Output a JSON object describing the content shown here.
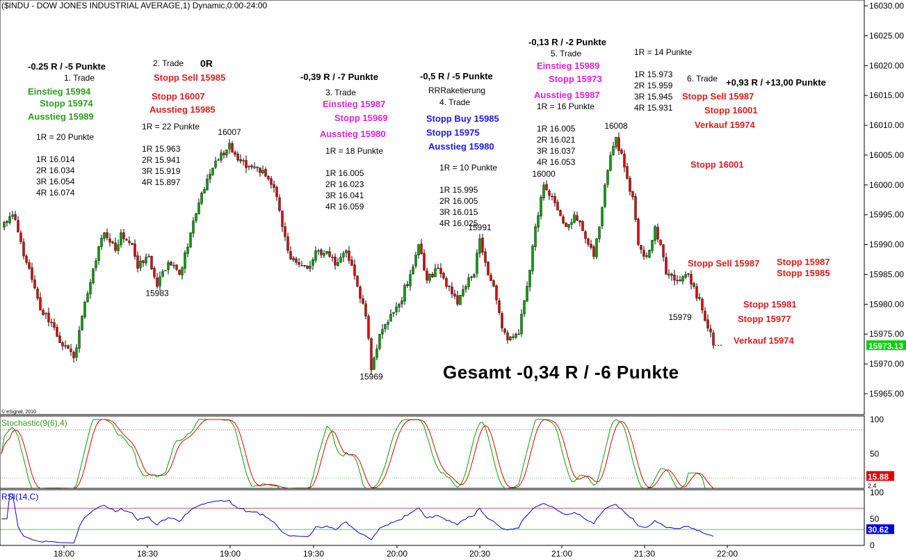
{
  "header": {
    "title": "($INDU - DOW JONES INDUSTRIAL AVERAGE,1) Dynamic,0:00-24:00"
  },
  "chart_data": {
    "type": "candlestick",
    "title": "($INDU - DOW JONES INDUSTRIAL AVERAGE,1) Dynamic,0:00-24:00",
    "price_axis": {
      "ylim": [
        15961.5,
        16031
      ],
      "tick_labels": [
        "16030.00",
        "16025.00",
        "16020.00",
        "16015.00",
        "16010.00",
        "16005.00",
        "16000.00",
        "15995.00",
        "15990.00",
        "15985.00",
        "15980.00",
        "15975.00",
        "15970.00",
        "15965.00"
      ],
      "ticks": [
        16030,
        16025,
        16020,
        16015,
        16010,
        16005,
        16000,
        15995,
        15990,
        15985,
        15980,
        15975,
        15970,
        15965
      ],
      "last_price_label": "15973.13",
      "last_price": 15973.13
    },
    "time_axis": {
      "tick_labels": [
        "18:00",
        "18:30",
        "19:00",
        "19:30",
        "20:00",
        "20:30",
        "21:00",
        "21:30",
        "22:00"
      ]
    },
    "price_keypoints": [
      [
        0,
        15993
      ],
      [
        4,
        15995
      ],
      [
        9,
        15987
      ],
      [
        14,
        15979
      ],
      [
        18,
        15977
      ],
      [
        22,
        15973
      ],
      [
        26,
        15971
      ],
      [
        29,
        15978
      ],
      [
        33,
        15986
      ],
      [
        37,
        15992
      ],
      [
        41,
        15989
      ],
      [
        43,
        15992
      ],
      [
        47,
        15990
      ],
      [
        49,
        15986
      ],
      [
        53,
        15988
      ],
      [
        56,
        15983
      ],
      [
        60,
        15987
      ],
      [
        64,
        15985
      ],
      [
        68,
        15992
      ],
      [
        71,
        15997
      ],
      [
        74,
        16001
      ],
      [
        77,
        16004
      ],
      [
        80,
        16005
      ],
      [
        82,
        16007
      ],
      [
        86,
        16004
      ],
      [
        92,
        16003
      ],
      [
        96,
        16001
      ],
      [
        99,
        15998
      ],
      [
        101,
        15993
      ],
      [
        103,
        15989
      ],
      [
        106,
        15987
      ],
      [
        110,
        15986
      ],
      [
        114,
        15989
      ],
      [
        118,
        15988
      ],
      [
        121,
        15987
      ],
      [
        124,
        15989
      ],
      [
        128,
        15983
      ],
      [
        131,
        15978
      ],
      [
        133,
        15969
      ],
      [
        136,
        15975
      ],
      [
        139,
        15977
      ],
      [
        143,
        15980
      ],
      [
        147,
        15985
      ],
      [
        150,
        15990
      ],
      [
        153,
        15984
      ],
      [
        157,
        15986
      ],
      [
        161,
        15983
      ],
      [
        164,
        15980
      ],
      [
        167,
        15983
      ],
      [
        170,
        15985
      ],
      [
        172,
        15991
      ],
      [
        174,
        15987
      ],
      [
        177,
        15983
      ],
      [
        180,
        15976
      ],
      [
        182,
        15974
      ],
      [
        186,
        15975
      ],
      [
        189,
        15983
      ],
      [
        192,
        15993
      ],
      [
        195,
        16000
      ],
      [
        199,
        15997
      ],
      [
        203,
        15993
      ],
      [
        206,
        15995
      ],
      [
        210,
        15991
      ],
      [
        213,
        15988
      ],
      [
        215,
        15993
      ],
      [
        217,
        16000
      ],
      [
        219,
        16005
      ],
      [
        221,
        16008
      ],
      [
        224,
        16003
      ],
      [
        227,
        15998
      ],
      [
        229,
        15990
      ],
      [
        232,
        15988
      ],
      [
        235,
        15993
      ],
      [
        237,
        15990
      ],
      [
        239,
        15985
      ],
      [
        243,
        15984
      ],
      [
        246,
        15985
      ],
      [
        249,
        15983
      ],
      [
        252,
        15979
      ],
      [
        254,
        15976
      ],
      [
        256,
        15973.13
      ]
    ],
    "price_labels": [
      {
        "text": "16007",
        "price": 16007
      },
      {
        "text": "15983",
        "price": 15983
      },
      {
        "text": "15969",
        "price": 15969
      },
      {
        "text": "15991",
        "price": 15991
      },
      {
        "text": "16000",
        "price": 16000
      },
      {
        "text": "16008",
        "price": 16008
      },
      {
        "text": "15979",
        "price": 15979
      }
    ],
    "stochastic": {
      "label": "Stochastic(9(6),4)",
      "ylim": [
        0,
        105
      ],
      "tick_labels": [
        "100",
        "50"
      ],
      "ticks": [
        100,
        50
      ],
      "levels": [
        85,
        15
      ],
      "last_value_label": "15.88",
      "last_value": 15.88,
      "secondary_label": "2.4",
      "secondary_value": 2.4
    },
    "rsi": {
      "label": "RSI(14,C)",
      "ylim": [
        0,
        105
      ],
      "tick_labels": [
        "100",
        "50",
        "0"
      ],
      "ticks": [
        100,
        50,
        0
      ],
      "levels": [
        70,
        30
      ],
      "last_value_label": "30.62",
      "last_value": 30.62
    },
    "copyright": "© eSignal, 2010",
    "colors": {
      "up": "#00a000",
      "down": "#e00000",
      "last_price_bg": "#00d000",
      "last_value_bg": "#e00000",
      "rsi_line": "#0000cc",
      "rsi_last_bg": "#0000cc"
    }
  },
  "annotations": {
    "t1": {
      "result": "-0.25 R / -5 Punkte",
      "name": "1. Trade",
      "entry": "Einstieg 15994",
      "stop": "Stopp 15974",
      "exit": "Ausstieg 15989",
      "r": "1R = 20 Punkte",
      "targets": "1R 16.014\n2R 16.034\n3R 16.054\n4R 16.074"
    },
    "t2": {
      "name": "2. Trade",
      "result": "0R",
      "stop_sell": "Stopp Sell 15985",
      "stop": "Stopp 16007",
      "exit": "Ausstieg 15985",
      "r": "1R = 22 Punkte",
      "targets": "1R 15.963\n2R 15.941\n3R 15.919\n4R 15.897"
    },
    "t3": {
      "result": "-0,39 R / -7 Punkte",
      "name": "3. Trade",
      "entry": "Einstieg 15987",
      "stop": "Stopp 15969",
      "exit": "Ausstieg 15980",
      "r": "1R = 18 Punkte",
      "targets": "1R 16.005\n2R 16.023\n3R 16.041\n4R 16.059"
    },
    "t4": {
      "result": "-0,5 R / -5 Punkte",
      "note": "RRRaketierung",
      "name": "4. Trade",
      "stop_buy": "Stopp Buy 15985",
      "stop": "Stopp 15975",
      "exit": "Ausstieg 15980",
      "r": "1R = 10 Punkte",
      "targets": "1R 15.995\n2R 16.005\n3R 16.015\n4R 16.025"
    },
    "t5": {
      "result": "-0,13 R / -2 Punkte",
      "name": "5. Trade",
      "entry": "Einstieg 15989",
      "stop": "Stopp 15973",
      "exit": "Ausstieg 15987",
      "r": "1R = 16 Punkte",
      "targets": "1R 16.005\n2R 16.021\n3R 16.037\n4R 16.053"
    },
    "t6": {
      "r": "1R = 14 Punkte",
      "targets": "1R 15.973\n2R 15.959\n3R 15.945\n4R 15.931",
      "name": "6. Trade",
      "result": "+0,93 R / +13,00 Punkte",
      "stop_sell": "Stopp Sell 15987",
      "stop1": "Stopp 16001",
      "sale1": "Verkauf 15974",
      "stop2": "Stopp 16001"
    },
    "right": {
      "stop_sell": "Stopp Sell 15987",
      "stop_a": "Stopp 15987",
      "stop_b": "Stopp 15985",
      "stop_c": "Stopp 15981",
      "stop_d": "Stopp 15977",
      "sale": "Verkauf 15974"
    },
    "total": "Gesamt -0,34 R / -6 Punkte"
  }
}
